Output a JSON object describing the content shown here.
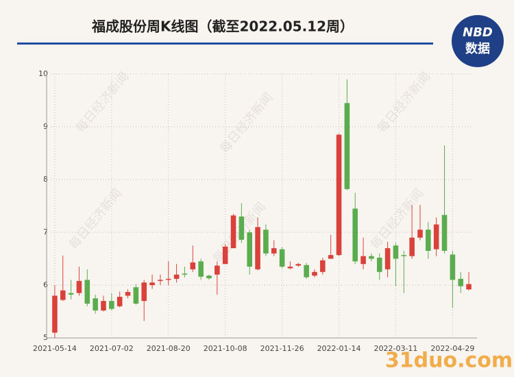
{
  "chart_data": {
    "type": "candlestick",
    "title": "福成股份周K线图（截至2022.05.12周）",
    "logo": [
      "NBD",
      "数据"
    ],
    "watermark": "每日经济新闻",
    "site_watermark": "31duo.com",
    "categories": [
      "2021-05-14",
      null,
      null,
      null,
      null,
      null,
      null,
      "2021-07-02",
      null,
      null,
      null,
      null,
      null,
      null,
      "2021-08-20",
      null,
      null,
      null,
      null,
      null,
      null,
      "2021-10-08",
      null,
      null,
      null,
      null,
      null,
      null,
      "2021-11-26",
      null,
      null,
      null,
      null,
      null,
      null,
      "2022-01-14",
      null,
      null,
      null,
      null,
      null,
      null,
      "2022-03-11",
      null,
      null,
      null,
      null,
      null,
      null,
      "2022-04-29",
      null,
      null
    ],
    "open": [
      5.1,
      5.72,
      5.85,
      5.85,
      6.1,
      5.75,
      5.52,
      5.7,
      5.6,
      5.8,
      5.96,
      5.7,
      6.0,
      6.08,
      6.1,
      6.12,
      6.22,
      6.3,
      6.45,
      6.18,
      6.2,
      6.4,
      6.7,
      7.3,
      7.0,
      6.3,
      7.05,
      6.6,
      6.68,
      6.32,
      6.37,
      6.38,
      6.18,
      6.25,
      6.5,
      6.57,
      9.45,
      7.45,
      6.4,
      6.55,
      6.52,
      6.3,
      6.75,
      6.57,
      6.55,
      6.9,
      7.05,
      6.68,
      7.33,
      6.58,
      6.12,
      5.92
    ],
    "high": [
      6.0,
      6.56,
      6.1,
      6.35,
      6.3,
      5.82,
      5.8,
      5.85,
      5.88,
      5.92,
      6.02,
      6.1,
      6.2,
      6.2,
      6.45,
      6.4,
      6.35,
      6.75,
      6.5,
      6.2,
      6.45,
      6.78,
      7.35,
      7.55,
      7.05,
      7.28,
      7.15,
      6.85,
      6.72,
      6.45,
      6.42,
      6.42,
      6.3,
      6.52,
      6.95,
      8.87,
      9.9,
      7.75,
      6.9,
      6.6,
      6.6,
      6.82,
      6.8,
      6.65,
      7.52,
      7.52,
      7.2,
      7.28,
      8.65,
      6.65,
      6.25,
      6.25
    ],
    "low": [
      5.0,
      5.7,
      5.73,
      5.8,
      5.6,
      5.46,
      5.5,
      5.52,
      5.58,
      5.75,
      5.63,
      5.32,
      5.93,
      6.0,
      6.0,
      6.05,
      6.15,
      6.25,
      6.1,
      6.1,
      5.82,
      6.4,
      6.7,
      6.8,
      6.2,
      6.28,
      6.55,
      6.55,
      6.32,
      6.3,
      6.35,
      6.12,
      6.15,
      6.2,
      6.5,
      6.55,
      7.8,
      6.4,
      6.3,
      6.45,
      6.1,
      6.15,
      5.98,
      5.85,
      6.5,
      6.85,
      6.5,
      6.55,
      6.6,
      5.57,
      5.85,
      5.9
    ],
    "close": [
      5.8,
      5.9,
      5.82,
      6.08,
      5.65,
      5.52,
      5.7,
      5.55,
      5.78,
      5.87,
      5.65,
      6.05,
      6.05,
      6.1,
      6.12,
      6.2,
      6.2,
      6.43,
      6.16,
      6.13,
      6.37,
      6.73,
      7.32,
      6.86,
      6.35,
      7.1,
      6.6,
      6.7,
      6.35,
      6.35,
      6.4,
      6.15,
      6.25,
      6.47,
      6.57,
      8.85,
      7.82,
      6.45,
      6.55,
      6.5,
      6.25,
      6.7,
      6.5,
      6.55,
      6.9,
      7.05,
      6.65,
      7.15,
      6.65,
      6.1,
      5.98,
      6.02
    ],
    "up_color": "#d9413a",
    "down_color": "#5aac4e",
    "ylim": [
      5,
      10
    ],
    "yticks": [
      5,
      6,
      7,
      8,
      9,
      10
    ],
    "grid": true
  }
}
